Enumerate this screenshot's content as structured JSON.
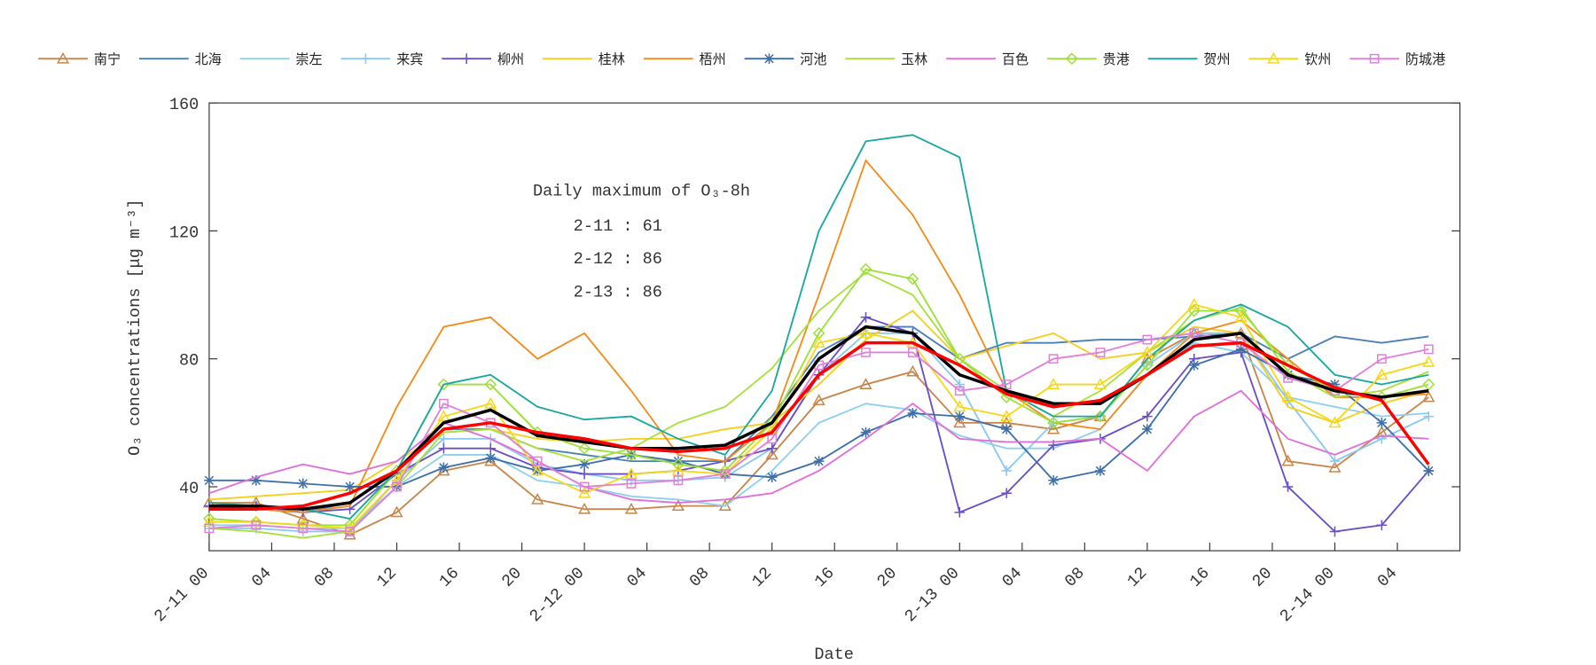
{
  "chart_data": {
    "type": "line",
    "x_label": "Date",
    "y_label": "O₃ concentrations [μg m⁻³]",
    "annotation": {
      "title": "Daily maximum of O₃-8h",
      "lines": [
        "2-11 : 61",
        "2-12 : 86",
        "2-13 : 86"
      ]
    },
    "x": [
      0,
      3,
      6,
      9,
      12,
      15,
      18,
      21,
      24,
      27,
      30,
      33,
      36,
      39,
      42,
      45,
      48,
      51,
      54,
      57,
      60,
      63,
      66,
      69,
      72,
      75,
      78
    ],
    "xlim": [
      0,
      80
    ],
    "ylim": [
      20,
      160
    ],
    "yticks": [
      40,
      80,
      120,
      160
    ],
    "xticks": [
      {
        "value": 0,
        "label": "2-11 00"
      },
      {
        "value": 4,
        "label": "04"
      },
      {
        "value": 8,
        "label": "08"
      },
      {
        "value": 12,
        "label": "12"
      },
      {
        "value": 16,
        "label": "16"
      },
      {
        "value": 20,
        "label": "20"
      },
      {
        "value": 24,
        "label": "2-12 00"
      },
      {
        "value": 28,
        "label": "04"
      },
      {
        "value": 32,
        "label": "08"
      },
      {
        "value": 36,
        "label": "12"
      },
      {
        "value": 40,
        "label": "16"
      },
      {
        "value": 44,
        "label": "20"
      },
      {
        "value": 48,
        "label": "2-13 00"
      },
      {
        "value": 52,
        "label": "04"
      },
      {
        "value": 56,
        "label": "08"
      },
      {
        "value": 60,
        "label": "12"
      },
      {
        "value": 64,
        "label": "16"
      },
      {
        "value": 68,
        "label": "20"
      },
      {
        "value": 72,
        "label": "2-14 00"
      },
      {
        "value": 76,
        "label": "04"
      }
    ],
    "series": [
      {
        "name": "南宁",
        "color": "#c8864a",
        "marker": "triangle",
        "values": [
          35,
          35,
          30,
          25,
          32,
          45,
          48,
          36,
          33,
          33,
          34,
          34,
          50,
          67,
          72,
          76,
          60,
          60,
          58,
          62,
          80,
          88,
          88,
          48,
          46,
          57,
          68
        ]
      },
      {
        "name": "北海",
        "color": "#4a7fb8",
        "marker": "none",
        "values": [
          34,
          33,
          32,
          35,
          45,
          58,
          58,
          52,
          50,
          48,
          48,
          48,
          62,
          82,
          90,
          90,
          80,
          85,
          85,
          86,
          86,
          87,
          88,
          80,
          87,
          85,
          87
        ]
      },
      {
        "name": "崇左",
        "color": "#8fd0f0",
        "marker": "none",
        "values": [
          28,
          28,
          27,
          27,
          40,
          50,
          50,
          42,
          40,
          37,
          36,
          34,
          45,
          60,
          66,
          64,
          56,
          52,
          52,
          58,
          75,
          85,
          82,
          68,
          65,
          62,
          63
        ]
      },
      {
        "name": "来宾",
        "color": "#8cc8f0",
        "marker": "plus",
        "values": [
          27,
          27,
          26,
          26,
          42,
          55,
          55,
          47,
          44,
          42,
          42,
          43,
          52,
          75,
          88,
          88,
          72,
          45,
          60,
          62,
          78,
          88,
          88,
          67,
          48,
          55,
          62
        ]
      },
      {
        "name": "柳州",
        "color": "#6a4fc8",
        "marker": "plus",
        "values": [
          34,
          34,
          32,
          33,
          44,
          52,
          52,
          46,
          44,
          44,
          45,
          48,
          52,
          75,
          93,
          88,
          32,
          38,
          53,
          55,
          62,
          80,
          82,
          40,
          26,
          28,
          45
        ]
      },
      {
        "name": "桂林",
        "color": "#f5cf1e",
        "marker": "none",
        "values": [
          36,
          37,
          38,
          39,
          48,
          57,
          58,
          55,
          54,
          55,
          55,
          58,
          60,
          72,
          86,
          95,
          80,
          84,
          88,
          80,
          82,
          90,
          88,
          65,
          60,
          66,
          70
        ]
      },
      {
        "name": "梧州",
        "color": "#f28c1c",
        "marker": "none",
        "values": [
          33,
          33,
          32,
          34,
          65,
          90,
          93,
          80,
          88,
          70,
          50,
          48,
          60,
          100,
          142,
          125,
          100,
          70,
          60,
          58,
          75,
          88,
          92,
          80,
          68,
          68,
          69
        ]
      },
      {
        "name": "河池",
        "color": "#3f6fa8",
        "marker": "star",
        "values": [
          42,
          42,
          41,
          40,
          40,
          46,
          49,
          45,
          47,
          50,
          48,
          44,
          43,
          48,
          57,
          63,
          62,
          58,
          42,
          45,
          58,
          78,
          83,
          75,
          72,
          60,
          45
        ]
      },
      {
        "name": "玉林",
        "color": "#a8e03c",
        "marker": "none",
        "values": [
          27,
          26,
          24,
          26,
          40,
          57,
          58,
          52,
          48,
          52,
          60,
          65,
          77,
          95,
          107,
          100,
          80,
          70,
          62,
          70,
          82,
          92,
          96,
          76,
          68,
          70,
          76
        ]
      },
      {
        "name": "百色",
        "color": "#e070d8",
        "marker": "none",
        "values": [
          38,
          43,
          47,
          44,
          48,
          60,
          55,
          48,
          40,
          36,
          35,
          36,
          38,
          45,
          55,
          66,
          55,
          54,
          54,
          55,
          45,
          62,
          70,
          55,
          50,
          56,
          55
        ]
      },
      {
        "name": "贵港",
        "color": "#9ee03a",
        "marker": "diamond",
        "values": [
          30,
          29,
          28,
          28,
          45,
          72,
          72,
          57,
          52,
          50,
          47,
          45,
          60,
          88,
          108,
          105,
          80,
          68,
          60,
          62,
          78,
          95,
          95,
          78,
          70,
          68,
          72
        ]
      },
      {
        "name": "贺州",
        "color": "#1aa8a0",
        "marker": "none",
        "values": [
          35,
          34,
          33,
          30,
          45,
          72,
          75,
          65,
          61,
          62,
          55,
          50,
          70,
          120,
          148,
          150,
          143,
          70,
          62,
          62,
          80,
          92,
          97,
          90,
          75,
          72,
          75
        ]
      },
      {
        "name": "钦州",
        "color": "#f5d81a",
        "marker": "triangle",
        "values": [
          29,
          29,
          28,
          27,
          42,
          62,
          66,
          45,
          38,
          44,
          45,
          44,
          58,
          85,
          88,
          85,
          65,
          62,
          72,
          72,
          82,
          97,
          93,
          68,
          60,
          75,
          79
        ]
      },
      {
        "name": "防城港",
        "color": "#e080d8",
        "marker": "square",
        "values": [
          27,
          28,
          27,
          26,
          40,
          66,
          60,
          48,
          40,
          41,
          42,
          44,
          55,
          78,
          82,
          82,
          70,
          72,
          80,
          82,
          86,
          88,
          85,
          74,
          70,
          80,
          83
        ]
      },
      {
        "color": "#000000",
        "marker": "none",
        "width": 3,
        "values": [
          34,
          34,
          33,
          35,
          45,
          60,
          64,
          56,
          54,
          52,
          52,
          53,
          60,
          80,
          90,
          88,
          75,
          70,
          66,
          66,
          75,
          86,
          88,
          75,
          70,
          68,
          70
        ]
      },
      {
        "color": "#ff0000",
        "marker": "none",
        "width": 3,
        "values": [
          33,
          33,
          34,
          38,
          45,
          58,
          60,
          57,
          55,
          52,
          51,
          52,
          57,
          75,
          85,
          85,
          78,
          69,
          65,
          67,
          75,
          84,
          85,
          78,
          71,
          67,
          47
        ]
      }
    ]
  }
}
